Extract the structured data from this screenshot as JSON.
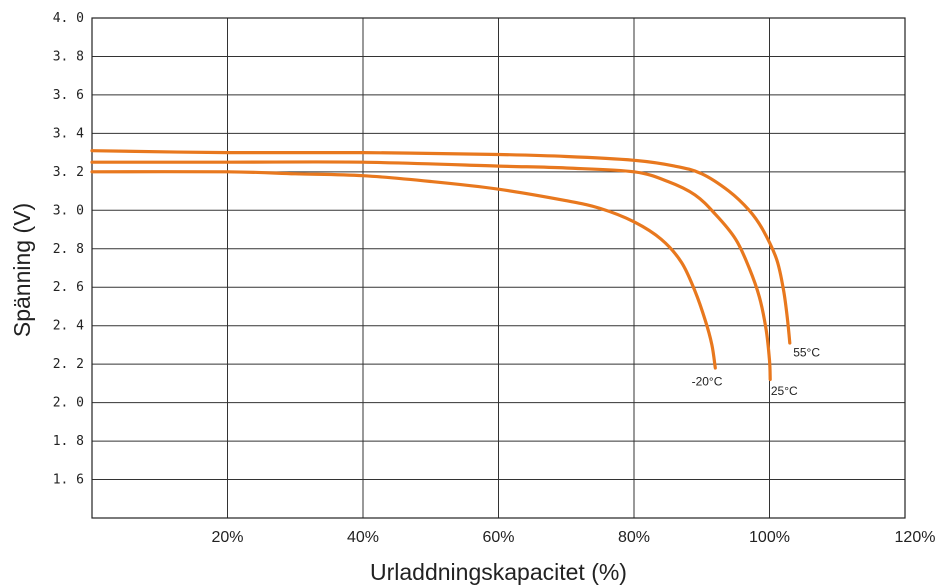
{
  "chart_data": {
    "type": "line",
    "title": "",
    "xlabel": "Urladdningskapacitet (%)",
    "ylabel": "Spänning (V)",
    "xlim": [
      0,
      120
    ],
    "ylim": [
      1.4,
      4.0
    ],
    "grid": true,
    "x_ticks": [
      {
        "value": 20,
        "label": "20%"
      },
      {
        "value": 40,
        "label": "40%"
      },
      {
        "value": 60,
        "label": "60%"
      },
      {
        "value": 80,
        "label": "80%"
      },
      {
        "value": 100,
        "label": "100%"
      },
      {
        "value": 120,
        "label": "120%"
      }
    ],
    "y_ticks": [
      {
        "value": 4.0,
        "label": "4. 0"
      },
      {
        "value": 3.8,
        "label": "3. 8"
      },
      {
        "value": 3.6,
        "label": "3. 6"
      },
      {
        "value": 3.4,
        "label": "3. 4"
      },
      {
        "value": 3.2,
        "label": "3. 2"
      },
      {
        "value": 3.0,
        "label": "3. 0"
      },
      {
        "value": 2.8,
        "label": "2. 8"
      },
      {
        "value": 2.6,
        "label": "2. 6"
      },
      {
        "value": 2.4,
        "label": "2. 4"
      },
      {
        "value": 2.2,
        "label": "2. 2"
      },
      {
        "value": 2.0,
        "label": "2. 0"
      },
      {
        "value": 1.8,
        "label": "1. 8"
      },
      {
        "value": 1.6,
        "label": "1. 6"
      }
    ],
    "series": [
      {
        "name": "55°C",
        "color": "#E8781E",
        "x": [
          0,
          20,
          40,
          60,
          70,
          80,
          86,
          90,
          94,
          97,
          99,
          101,
          102,
          102.6,
          103
        ],
        "y": [
          3.31,
          3.3,
          3.3,
          3.29,
          3.28,
          3.26,
          3.23,
          3.19,
          3.1,
          3.0,
          2.9,
          2.75,
          2.6,
          2.45,
          2.31
        ]
      },
      {
        "name": "25°C",
        "color": "#E8781E",
        "x": [
          0,
          20,
          40,
          60,
          70,
          80,
          85,
          89,
          92,
          95,
          97,
          98.5,
          99.5,
          100,
          100.1
        ],
        "y": [
          3.25,
          3.25,
          3.25,
          3.23,
          3.22,
          3.2,
          3.15,
          3.08,
          2.98,
          2.85,
          2.7,
          2.55,
          2.38,
          2.22,
          2.12
        ]
      },
      {
        "name": "-20°C",
        "color": "#E8781E",
        "x": [
          0,
          20,
          30,
          40,
          50,
          60,
          70,
          75,
          80,
          84,
          87,
          89,
          90.5,
          91.5,
          92
        ],
        "y": [
          3.2,
          3.2,
          3.19,
          3.18,
          3.15,
          3.11,
          3.05,
          3.01,
          2.94,
          2.85,
          2.73,
          2.58,
          2.43,
          2.3,
          2.18
        ]
      }
    ],
    "annotations": [
      {
        "text": "55°C",
        "x": 103.5,
        "y": 2.24,
        "anchor": "start"
      },
      {
        "text": "25°C",
        "x": 100.2,
        "y": 2.04,
        "anchor": "start"
      },
      {
        "text": "-20°C",
        "x": 88.5,
        "y": 2.09,
        "anchor": "start"
      }
    ]
  }
}
